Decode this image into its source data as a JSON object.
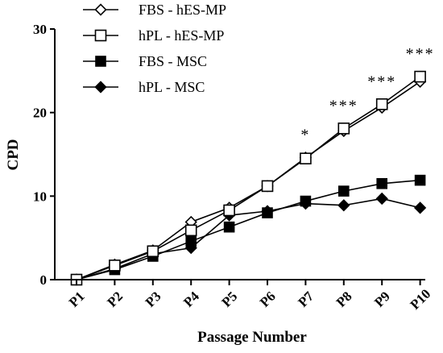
{
  "chart_data": {
    "type": "line",
    "xlabel": "Passage Number",
    "ylabel": "CPD",
    "categories": [
      "P1",
      "P2",
      "P3",
      "P4",
      "P5",
      "P6",
      "P7",
      "P8",
      "P9",
      "P10"
    ],
    "ylim": [
      0,
      30
    ],
    "yticks": [
      0,
      10,
      20,
      30
    ],
    "grid": false,
    "legend_position": "top-left",
    "series": [
      {
        "name": "FBS - hES-MP",
        "marker": "diamond-open",
        "values": [
          0,
          1.8,
          3.5,
          6.9,
          8.6,
          11.2,
          14.6,
          17.8,
          20.6,
          23.7
        ]
      },
      {
        "name": "hPL - hES-MP",
        "marker": "square-open",
        "values": [
          0,
          1.7,
          3.4,
          5.9,
          8.3,
          11.2,
          14.5,
          18.1,
          21.0,
          24.3
        ]
      },
      {
        "name": "FBS - MSC",
        "marker": "square-filled",
        "values": [
          0,
          1.2,
          2.8,
          4.6,
          6.3,
          8.0,
          9.4,
          10.6,
          11.5,
          11.9
        ]
      },
      {
        "name": "hPL - MSC",
        "marker": "diamond-filled",
        "values": [
          0,
          1.3,
          3.1,
          3.8,
          7.7,
          8.2,
          9.1,
          8.9,
          9.7,
          8.6
        ]
      }
    ],
    "annotations": [
      {
        "category": "P7",
        "text": "*"
      },
      {
        "category": "P8",
        "text": "***"
      },
      {
        "category": "P9",
        "text": "***"
      },
      {
        "category": "P10",
        "text": "***"
      }
    ]
  }
}
